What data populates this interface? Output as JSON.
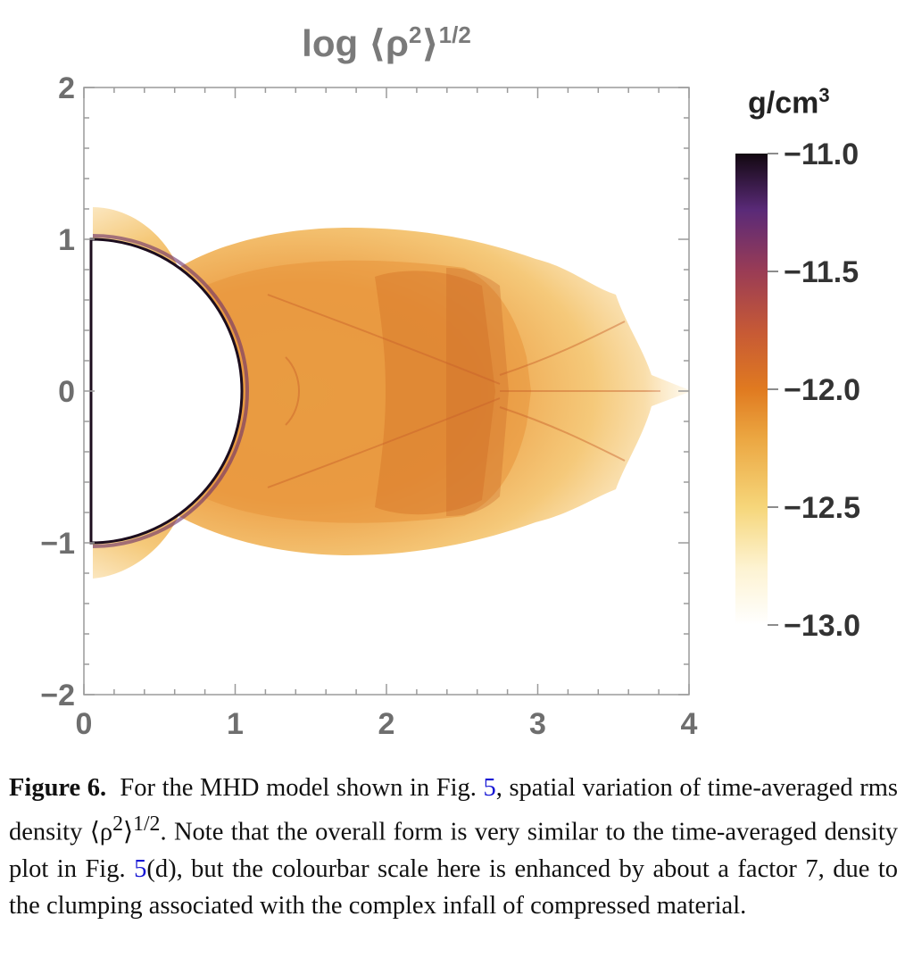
{
  "chart_data": {
    "type": "heatmap",
    "title": "log ⟨ρ²⟩^1/2",
    "title_main": "log ⟨ρ",
    "title_sup1": "2",
    "title_close": "⟩",
    "title_sup2": "1/2",
    "xlabel": "",
    "ylabel": "",
    "xlim": [
      0,
      4
    ],
    "ylim": [
      -2,
      2
    ],
    "xticks": [
      "0",
      "1",
      "2",
      "3",
      "4"
    ],
    "yticks": [
      "2",
      "1",
      "0",
      "−1",
      "−2"
    ],
    "colorbar": {
      "unit": "g/cm",
      "unit_sup": "3",
      "range": [
        -13.0,
        -11.0
      ],
      "ticks": [
        "−11.0",
        "−11.5",
        "−12.0",
        "−12.5",
        "−13.0"
      ]
    },
    "features": {
      "star_radius": 1.0,
      "outflow_extent_x": 4.0
    }
  },
  "caption": {
    "label": "Figure 6.",
    "text_1": "For the MHD model shown in Fig.",
    "ref_1": "5",
    "text_2": ", spatial variation of time-averaged rms density ⟨ρ",
    "sup_1": "2",
    "text_3": "⟩",
    "sup_2": "1/2",
    "text_4": ". Note that the overall form is very similar to the time-averaged density plot in Fig.",
    "ref_2": "5",
    "text_5": "(d), but the colourbar scale here is enhanced by about a factor 7, due to the clumping associated with the complex infall of compressed material."
  },
  "colors": {
    "dark": "#1a0d14",
    "purple": "#5c2a7a",
    "orange": "#e07a1f",
    "gold": "#f0c050",
    "pale": "#fff8e8",
    "ref": "#1414d4"
  }
}
